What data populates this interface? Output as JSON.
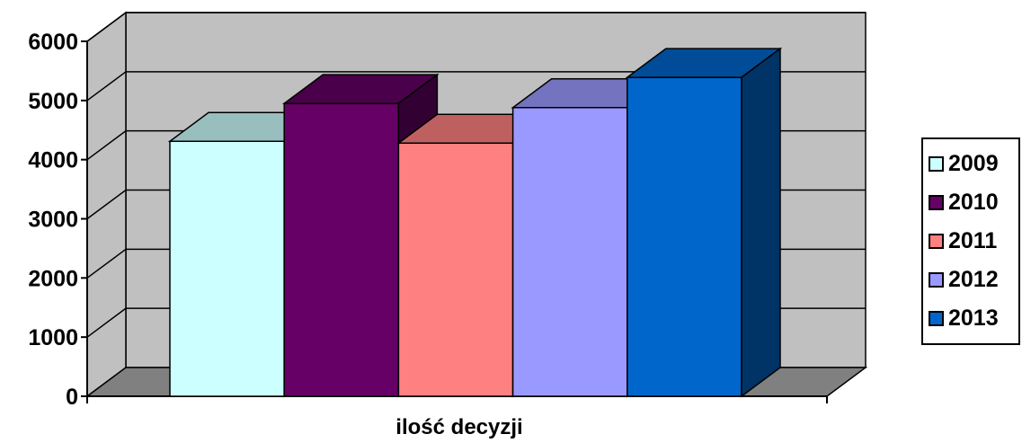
{
  "chart_data": {
    "type": "bar",
    "categories": [
      "ilość decyzji"
    ],
    "series": [
      {
        "name": "2009",
        "values": [
          4310
        ],
        "color": "#CCFFFF",
        "top_color": "#99BEBE",
        "side_color": "#8AAFAF"
      },
      {
        "name": "2010",
        "values": [
          4950
        ],
        "color": "#660066",
        "top_color": "#4A004A",
        "side_color": "#330033"
      },
      {
        "name": "2011",
        "values": [
          4280
        ],
        "color": "#FF8080",
        "top_color": "#BF6060",
        "side_color": "#A05050"
      },
      {
        "name": "2012",
        "values": [
          4880
        ],
        "color": "#9999FF",
        "top_color": "#7373BF",
        "side_color": "#6060A8"
      },
      {
        "name": "2013",
        "values": [
          5390
        ],
        "color": "#0066CC",
        "top_color": "#004C99",
        "side_color": "#003366"
      }
    ],
    "ylim": [
      0,
      6000
    ],
    "yticks": [
      "0",
      "1000",
      "2000",
      "3000",
      "4000",
      "5000",
      "6000"
    ],
    "ytick_values": [
      0,
      1000,
      2000,
      3000,
      4000,
      5000,
      6000
    ],
    "grid": true,
    "legend_position": "right",
    "wall_color": "#C0C0C0",
    "floor_color": "#808080"
  }
}
